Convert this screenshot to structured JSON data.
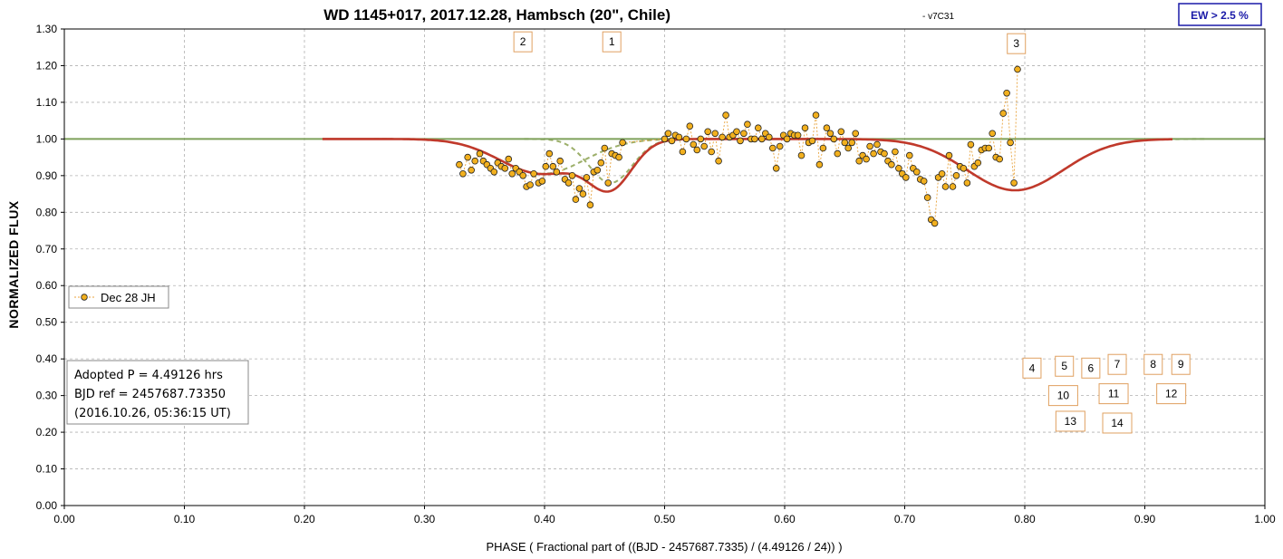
{
  "chart_data": {
    "type": "scatter",
    "title": "WD 1145+017, 2017.12.28, Hambsch (20\", Chile)",
    "subtitle": "- v7C31",
    "xlabel": "PHASE  ( Fractional part of ((BJD - 2457687.7335)  / (4.49126  / 24)) )",
    "ylabel": "NORMALIZED  FLUX",
    "xlim": [
      0,
      1
    ],
    "ylim": [
      0,
      1.3
    ],
    "x_ticks": [
      "0.00",
      "0.10",
      "0.20",
      "0.30",
      "0.40",
      "0.50",
      "0.60",
      "0.70",
      "0.80",
      "0.90",
      "1.00"
    ],
    "y_ticks": [
      "0.00",
      "0.10",
      "0.20",
      "0.30",
      "0.40",
      "0.50",
      "0.60",
      "0.70",
      "0.80",
      "0.90",
      "1.00",
      "1.10",
      "1.20",
      "1.30"
    ],
    "grid": true,
    "ew_label": "EW >  2.5 %",
    "legend": {
      "label": "Dec 28 JH",
      "placement": "left"
    },
    "info_lines": [
      "Adopted P = 4.49126 hrs",
      "BJD ref = 2457687.73350",
      "(2016.10.26, 05:36:15 UT)"
    ],
    "colors": {
      "points": "#f2b01e",
      "point_edge": "#222222",
      "connector": "#e8a33c",
      "model": "#c0392b",
      "components": "#9caf6a",
      "baseline": "#7ea05a",
      "grid": "#b0b0b0",
      "ew": "#1a1aa8",
      "box_border": "#e0a060"
    },
    "series": [
      {
        "name": "Dec 28 JH",
        "points": [
          [
            0.329,
            0.93
          ],
          [
            0.332,
            0.905
          ],
          [
            0.336,
            0.95
          ],
          [
            0.339,
            0.915
          ],
          [
            0.342,
            0.94
          ],
          [
            0.346,
            0.96
          ],
          [
            0.349,
            0.94
          ],
          [
            0.352,
            0.93
          ],
          [
            0.355,
            0.92
          ],
          [
            0.358,
            0.91
          ],
          [
            0.361,
            0.935
          ],
          [
            0.364,
            0.925
          ],
          [
            0.367,
            0.92
          ],
          [
            0.37,
            0.945
          ],
          [
            0.373,
            0.905
          ],
          [
            0.376,
            0.92
          ],
          [
            0.379,
            0.91
          ],
          [
            0.382,
            0.9
          ],
          [
            0.385,
            0.87
          ],
          [
            0.388,
            0.875
          ],
          [
            0.391,
            0.905
          ],
          [
            0.395,
            0.88
          ],
          [
            0.398,
            0.885
          ],
          [
            0.401,
            0.925
          ],
          [
            0.404,
            0.96
          ],
          [
            0.407,
            0.925
          ],
          [
            0.41,
            0.91
          ],
          [
            0.413,
            0.94
          ],
          [
            0.417,
            0.89
          ],
          [
            0.42,
            0.88
          ],
          [
            0.423,
            0.9
          ],
          [
            0.426,
            0.835
          ],
          [
            0.429,
            0.865
          ],
          [
            0.432,
            0.85
          ],
          [
            0.435,
            0.895
          ],
          [
            0.438,
            0.82
          ],
          [
            0.441,
            0.91
          ],
          [
            0.444,
            0.915
          ],
          [
            0.447,
            0.935
          ],
          [
            0.45,
            0.975
          ],
          [
            0.453,
            0.88
          ],
          [
            0.456,
            0.96
          ],
          [
            0.459,
            0.955
          ],
          [
            0.462,
            0.95
          ],
          [
            0.465,
            0.99
          ],
          [
            0.5,
            1.0
          ],
          [
            0.503,
            1.015
          ],
          [
            0.506,
            0.995
          ],
          [
            0.509,
            1.01
          ],
          [
            0.512,
            1.005
          ],
          [
            0.515,
            0.965
          ],
          [
            0.518,
            1.0
          ],
          [
            0.521,
            1.035
          ],
          [
            0.524,
            0.985
          ],
          [
            0.527,
            0.97
          ],
          [
            0.53,
            1.0
          ],
          [
            0.533,
            0.98
          ],
          [
            0.536,
            1.02
          ],
          [
            0.539,
            0.965
          ],
          [
            0.542,
            1.015
          ],
          [
            0.545,
            0.94
          ],
          [
            0.548,
            1.005
          ],
          [
            0.551,
            1.065
          ],
          [
            0.554,
            1.005
          ],
          [
            0.557,
            1.01
          ],
          [
            0.56,
            1.02
          ],
          [
            0.563,
            0.995
          ],
          [
            0.566,
            1.015
          ],
          [
            0.569,
            1.04
          ],
          [
            0.572,
            1.0
          ],
          [
            0.575,
            1.0
          ],
          [
            0.578,
            1.03
          ],
          [
            0.581,
            1.0
          ],
          [
            0.584,
            1.015
          ],
          [
            0.587,
            1.005
          ],
          [
            0.59,
            0.975
          ],
          [
            0.593,
            0.92
          ],
          [
            0.596,
            0.98
          ],
          [
            0.599,
            1.01
          ],
          [
            0.602,
            1.0
          ],
          [
            0.605,
            1.015
          ],
          [
            0.608,
            1.01
          ],
          [
            0.611,
            1.01
          ],
          [
            0.614,
            0.955
          ],
          [
            0.617,
            1.03
          ],
          [
            0.62,
            0.99
          ],
          [
            0.623,
            0.995
          ],
          [
            0.626,
            1.065
          ],
          [
            0.629,
            0.93
          ],
          [
            0.632,
            0.975
          ],
          [
            0.635,
            1.03
          ],
          [
            0.638,
            1.015
          ],
          [
            0.641,
            1.0
          ],
          [
            0.644,
            0.96
          ],
          [
            0.647,
            1.02
          ],
          [
            0.65,
            0.99
          ],
          [
            0.653,
            0.975
          ],
          [
            0.656,
            0.99
          ],
          [
            0.659,
            1.015
          ],
          [
            0.662,
            0.94
          ],
          [
            0.665,
            0.955
          ],
          [
            0.668,
            0.945
          ],
          [
            0.671,
            0.98
          ],
          [
            0.674,
            0.96
          ],
          [
            0.677,
            0.985
          ],
          [
            0.68,
            0.965
          ],
          [
            0.683,
            0.96
          ],
          [
            0.686,
            0.94
          ],
          [
            0.689,
            0.93
          ],
          [
            0.692,
            0.965
          ],
          [
            0.695,
            0.92
          ],
          [
            0.698,
            0.905
          ],
          [
            0.701,
            0.895
          ],
          [
            0.704,
            0.955
          ],
          [
            0.707,
            0.92
          ],
          [
            0.71,
            0.91
          ],
          [
            0.713,
            0.89
          ],
          [
            0.716,
            0.885
          ],
          [
            0.719,
            0.84
          ],
          [
            0.722,
            0.78
          ],
          [
            0.725,
            0.77
          ],
          [
            0.728,
            0.895
          ],
          [
            0.731,
            0.905
          ],
          [
            0.734,
            0.87
          ],
          [
            0.737,
            0.955
          ],
          [
            0.74,
            0.87
          ],
          [
            0.743,
            0.9
          ],
          [
            0.746,
            0.925
          ],
          [
            0.749,
            0.92
          ],
          [
            0.752,
            0.88
          ],
          [
            0.755,
            0.985
          ],
          [
            0.758,
            0.925
          ],
          [
            0.761,
            0.935
          ],
          [
            0.764,
            0.97
          ],
          [
            0.767,
            0.975
          ],
          [
            0.77,
            0.975
          ],
          [
            0.773,
            1.015
          ],
          [
            0.776,
            0.95
          ],
          [
            0.779,
            0.945
          ],
          [
            0.782,
            1.07
          ],
          [
            0.785,
            1.125
          ],
          [
            0.788,
            0.99
          ],
          [
            0.791,
            0.88
          ],
          [
            0.794,
            1.19
          ]
        ]
      }
    ],
    "model_range": [
      0.215,
      0.925
    ],
    "dips": [
      {
        "label": "1",
        "center": 0.455,
        "depth": 0.12,
        "width": 0.018
      },
      {
        "label": "2",
        "center": 0.398,
        "depth": 0.095,
        "width": 0.035
      },
      {
        "label": "3",
        "center": 0.792,
        "depth": 0.14,
        "width": 0.04
      }
    ],
    "dip_labels": [
      {
        "text": "2",
        "x": 0.382,
        "y": 1.265
      },
      {
        "text": "1",
        "x": 0.456,
        "y": 1.265
      },
      {
        "text": "3",
        "x": 0.793,
        "y": 1.26
      }
    ],
    "marker_labels": [
      {
        "text": "4",
        "x": 0.806,
        "y": 0.375
      },
      {
        "text": "5",
        "x": 0.833,
        "y": 0.38
      },
      {
        "text": "6",
        "x": 0.855,
        "y": 0.375
      },
      {
        "text": "7",
        "x": 0.877,
        "y": 0.385
      },
      {
        "text": "8",
        "x": 0.907,
        "y": 0.385
      },
      {
        "text": "9",
        "x": 0.93,
        "y": 0.385
      },
      {
        "text": "10",
        "x": 0.832,
        "y": 0.3
      },
      {
        "text": "11",
        "x": 0.874,
        "y": 0.305
      },
      {
        "text": "12",
        "x": 0.922,
        "y": 0.305
      },
      {
        "text": "13",
        "x": 0.838,
        "y": 0.23
      },
      {
        "text": "14",
        "x": 0.877,
        "y": 0.225
      }
    ]
  }
}
